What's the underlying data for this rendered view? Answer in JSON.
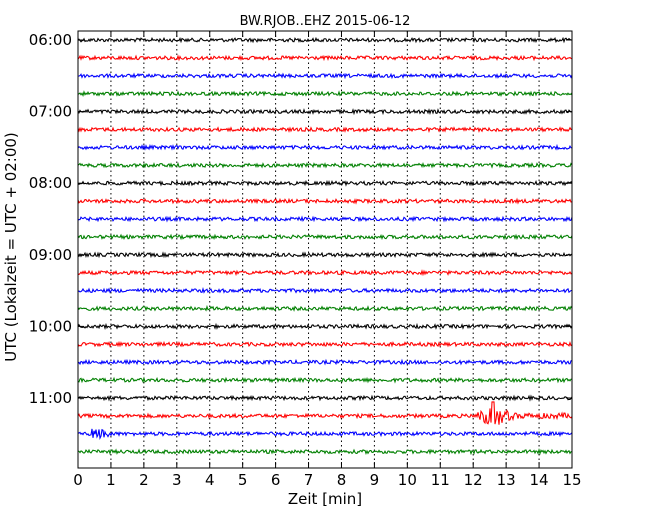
{
  "chart_data": {
    "type": "line",
    "title": "BW.RJOB..EHZ 2015-06-12",
    "xlabel": "Zeit  [min]",
    "ylabel": "UTC (Lokalzeit = UTC + 02:00)",
    "xlim": [
      0,
      15
    ],
    "x_ticks": [
      "0",
      "1",
      "2",
      "3",
      "4",
      "5",
      "6",
      "7",
      "8",
      "9",
      "10",
      "11",
      "12",
      "13",
      "14",
      "15"
    ],
    "y_tick_labels": [
      "06:00",
      "07:00",
      "08:00",
      "09:00",
      "10:00",
      "11:00"
    ],
    "grid": "vertical dotted",
    "trace_colors": [
      "#000000",
      "#ff0000",
      "#0000ff",
      "#008000"
    ],
    "traces": [
      {
        "start": "06:00",
        "color": "#000000",
        "amplitude": 0.1
      },
      {
        "start": "06:15",
        "color": "#ff0000",
        "amplitude": 0.1
      },
      {
        "start": "06:30",
        "color": "#0000ff",
        "amplitude": 0.1
      },
      {
        "start": "06:45",
        "color": "#008000",
        "amplitude": 0.1
      },
      {
        "start": "07:00",
        "color": "#000000",
        "amplitude": 0.1
      },
      {
        "start": "07:15",
        "color": "#ff0000",
        "amplitude": 0.1
      },
      {
        "start": "07:30",
        "color": "#0000ff",
        "amplitude": 0.1
      },
      {
        "start": "07:45",
        "color": "#008000",
        "amplitude": 0.1
      },
      {
        "start": "08:00",
        "color": "#000000",
        "amplitude": 0.1
      },
      {
        "start": "08:15",
        "color": "#ff0000",
        "amplitude": 0.1
      },
      {
        "start": "08:30",
        "color": "#0000ff",
        "amplitude": 0.1
      },
      {
        "start": "08:45",
        "color": "#008000",
        "amplitude": 0.1
      },
      {
        "start": "09:00",
        "color": "#000000",
        "amplitude": 0.1
      },
      {
        "start": "09:15",
        "color": "#ff0000",
        "amplitude": 0.1
      },
      {
        "start": "09:30",
        "color": "#0000ff",
        "amplitude": 0.1
      },
      {
        "start": "09:45",
        "color": "#008000",
        "amplitude": 0.1
      },
      {
        "start": "10:00",
        "color": "#000000",
        "amplitude": 0.1
      },
      {
        "start": "10:15",
        "color": "#ff0000",
        "amplitude": 0.1
      },
      {
        "start": "10:30",
        "color": "#0000ff",
        "amplitude": 0.1
      },
      {
        "start": "10:45",
        "color": "#008000",
        "amplitude": 0.1
      },
      {
        "start": "11:00",
        "color": "#000000",
        "amplitude": 0.1
      },
      {
        "start": "11:15",
        "color": "#ff0000",
        "amplitude": 0.1,
        "event": {
          "onset_min": 12.1,
          "peak_min": 12.6,
          "end_min": 15.0,
          "peak_amplitude": 0.7
        }
      },
      {
        "start": "11:30",
        "color": "#0000ff",
        "amplitude": 0.1,
        "burst": {
          "start_min": 0.4,
          "end_min": 1.0,
          "amplitude": 0.25
        }
      },
      {
        "start": "11:45",
        "color": "#008000",
        "amplitude": 0.1
      }
    ]
  }
}
